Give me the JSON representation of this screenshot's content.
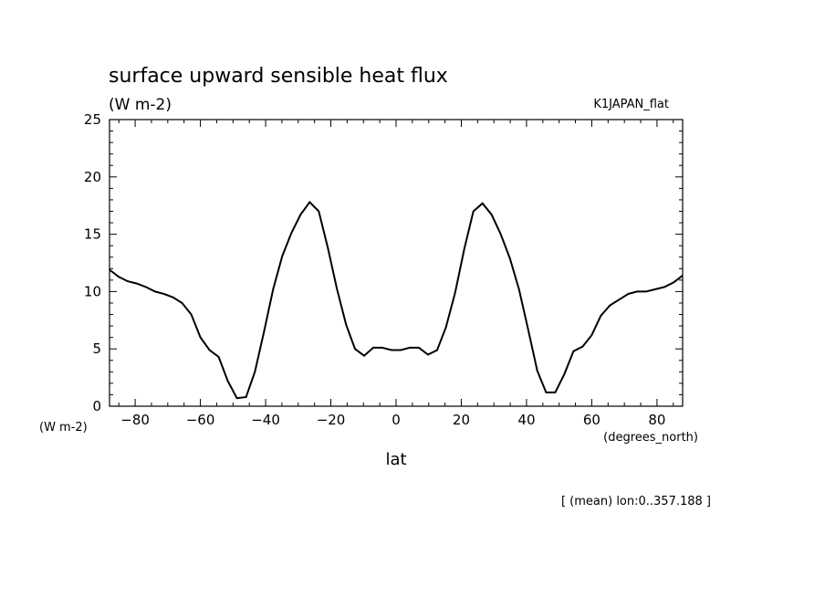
{
  "chart_data": {
    "type": "line",
    "title": "surface upward sensible heat flux",
    "units_label": "(W m-2)",
    "dataset_label": "K1JAPAN_flat",
    "ylabel": "(W m-2)",
    "xlabel": "lat",
    "xunits": "(degrees_north)",
    "footnote": "[ (mean) lon:0..357.188 ]",
    "xlim": [
      -87.86,
      87.86
    ],
    "ylim": [
      0,
      25
    ],
    "xticks": [
      -80,
      -60,
      -40,
      -20,
      0,
      20,
      40,
      60,
      80
    ],
    "xtick_labels": [
      "−80",
      "−60",
      "−40",
      "−20",
      "0",
      "20",
      "40",
      "60",
      "80"
    ],
    "yticks": [
      0,
      5,
      10,
      15,
      20,
      25
    ],
    "ytick_labels": [
      "0",
      "5",
      "10",
      "15",
      "20",
      "25"
    ],
    "grid": false,
    "series": [
      {
        "x": [
          -87.86,
          -85.1,
          -82.3,
          -79.5,
          -76.7,
          -73.9,
          -71.2,
          -68.4,
          -65.6,
          -62.8,
          -60.0,
          -57.2,
          -54.4,
          -51.6,
          -48.8,
          -46.0,
          -43.3,
          -40.5,
          -37.7,
          -34.9,
          -32.1,
          -29.3,
          -26.5,
          -23.7,
          -20.9,
          -18.1,
          -15.3,
          -12.6,
          -9.8,
          -7.0,
          -4.2,
          -1.4,
          1.4,
          4.2,
          7.0,
          9.8,
          12.6,
          15.3,
          18.1,
          20.9,
          23.7,
          26.5,
          29.3,
          32.1,
          34.9,
          37.7,
          40.5,
          43.3,
          46.0,
          48.8,
          51.6,
          54.4,
          57.2,
          60.0,
          62.8,
          65.6,
          68.4,
          71.2,
          73.9,
          76.7,
          79.5,
          82.3,
          85.1,
          87.86
        ],
        "y": [
          11.9,
          11.3,
          10.9,
          10.7,
          10.4,
          10.0,
          9.8,
          9.5,
          9.0,
          8.0,
          6.0,
          4.9,
          4.3,
          2.2,
          0.7,
          0.8,
          3.0,
          6.5,
          10.2,
          13.1,
          15.1,
          16.7,
          17.8,
          17.0,
          13.8,
          10.2,
          7.1,
          5.0,
          4.4,
          5.1,
          5.1,
          4.9,
          4.9,
          5.1,
          5.1,
          4.5,
          4.9,
          6.9,
          9.9,
          13.7,
          17.0,
          17.7,
          16.7,
          15.0,
          12.9,
          10.2,
          6.7,
          3.1,
          1.2,
          1.2,
          2.8,
          4.8,
          5.2,
          6.2,
          7.9,
          8.8,
          9.3,
          9.8,
          10.0,
          10.0,
          10.2,
          10.4,
          10.8,
          11.4
        ]
      }
    ]
  }
}
